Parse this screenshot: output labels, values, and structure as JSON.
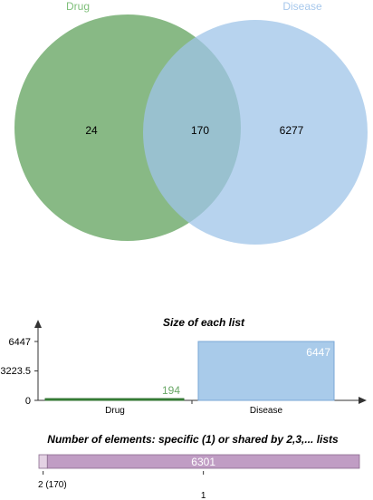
{
  "chart_data": [
    {
      "type": "venn",
      "sets": [
        {
          "name": "Drug",
          "color": "#6aa867"
        },
        {
          "name": "Disease",
          "color": "#9fc4e8"
        }
      ],
      "regions": {
        "drug_only": "24",
        "both": "170",
        "disease_only": "6277"
      }
    },
    {
      "type": "bar",
      "title": "Size of each list",
      "categories": [
        "Drug",
        "Disease"
      ],
      "values": [
        194,
        6447
      ],
      "value_labels": [
        "194",
        "6447"
      ],
      "ylim": [
        0,
        6447
      ],
      "y_ticks": [
        "0",
        "3223.5",
        "6447"
      ],
      "colors": [
        "#3a8a3a",
        "#a9cbea"
      ]
    },
    {
      "type": "bar",
      "orientation": "horizontal-stacked",
      "title": "Number of elements: specific (1) or shared by 2,3,... lists",
      "segments": [
        {
          "key": "2",
          "value": 170,
          "label": "2 (170)",
          "color": "#e4d2e4"
        },
        {
          "key": "1",
          "value": 6301,
          "label": "6301",
          "tick": "1",
          "color": "#c09dc4"
        }
      ]
    }
  ]
}
